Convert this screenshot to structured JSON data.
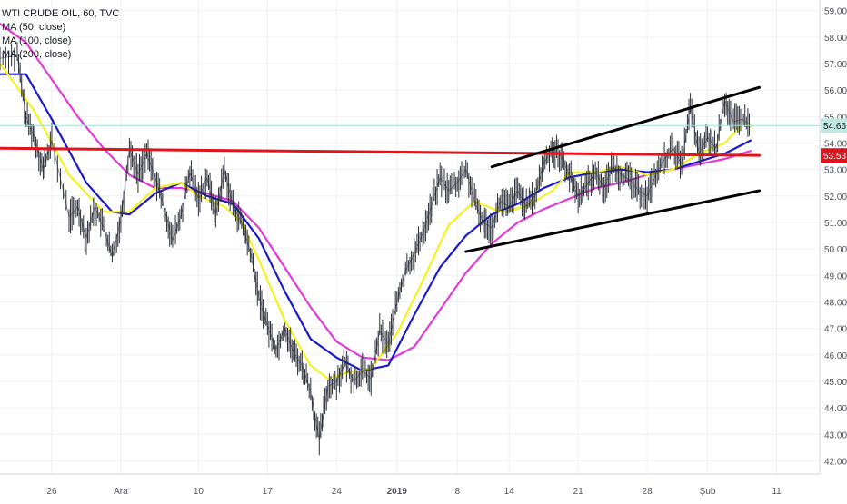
{
  "chart_data": {
    "type": "line",
    "title": "WTI CRUDE OIL, 60, TVC",
    "indicators": [
      {
        "label": "MA (50, close)",
        "color": "#f5f21f"
      },
      {
        "label": "MA (100, close)",
        "color": "#1a1acc"
      },
      {
        "label": "MA (200, close)",
        "color": "#e23ad8"
      }
    ],
    "x_tick_labels": [
      "26",
      "Ara",
      "10",
      "17",
      "24",
      "2019",
      "8",
      "14",
      "21",
      "28",
      "Şub",
      "11"
    ],
    "y_tick_labels": [
      "42.00",
      "43.00",
      "44.00",
      "45.00",
      "46.00",
      "47.00",
      "48.00",
      "49.00",
      "50.00",
      "51.00",
      "52.00",
      "53.00",
      "54.00",
      "55.00",
      "56.00",
      "57.00",
      "58.00",
      "59.00"
    ],
    "ylim": [
      41.5,
      59.4
    ],
    "last_price_label": "54.66",
    "resistance_label": "53.53",
    "y_scale_position": "right",
    "grid": true,
    "colors": {
      "price": "#2a2e39",
      "ma50": "#f5f21f",
      "ma100": "#1a1acc",
      "ma200": "#e23ad8",
      "resistance_line": "#e0141b",
      "channel_lines": "#000000",
      "last_price_badge": "#bfe8e2",
      "last_price_line": "#9fded6",
      "resistance_badge": "#e0141b",
      "grid": "#eef0f3"
    },
    "price_path": [
      [
        0,
        57.2
      ],
      [
        2,
        57.3
      ],
      [
        3,
        55.0
      ],
      [
        4,
        54.2
      ],
      [
        5,
        53.0
      ],
      [
        6,
        54.1
      ],
      [
        8,
        51.2
      ],
      [
        9,
        51.6
      ],
      [
        10,
        50.4
      ],
      [
        11,
        51.6
      ],
      [
        12,
        50.8
      ],
      [
        13,
        49.7
      ],
      [
        14,
        51.1
      ],
      [
        15,
        53.8
      ],
      [
        16,
        52.8
      ],
      [
        17,
        53.6
      ],
      [
        18,
        52.7
      ],
      [
        19,
        51.6
      ],
      [
        20,
        50.3
      ],
      [
        21,
        51.3
      ],
      [
        22,
        52.9
      ],
      [
        23,
        51.9
      ],
      [
        24,
        52.7
      ],
      [
        25,
        51.3
      ],
      [
        26,
        53.0
      ],
      [
        27,
        51.6
      ],
      [
        28,
        51.0
      ],
      [
        29,
        49.9
      ],
      [
        30,
        48.2
      ],
      [
        31,
        47.1
      ],
      [
        32,
        46.2
      ],
      [
        33,
        47.0
      ],
      [
        34,
        46.1
      ],
      [
        35,
        45.6
      ],
      [
        36,
        44.6
      ],
      [
        37,
        42.8
      ],
      [
        38,
        44.8
      ],
      [
        39,
        45.0
      ],
      [
        40,
        45.7
      ],
      [
        41,
        45.0
      ],
      [
        42,
        45.4
      ],
      [
        43,
        45.1
      ],
      [
        44,
        46.9
      ],
      [
        45,
        46.4
      ],
      [
        46,
        48.0
      ],
      [
        47,
        49.2
      ],
      [
        48,
        49.8
      ],
      [
        49,
        50.6
      ],
      [
        50,
        51.6
      ],
      [
        51,
        52.7
      ],
      [
        52,
        52.2
      ],
      [
        53,
        52.5
      ],
      [
        54,
        53.0
      ],
      [
        55,
        51.8
      ],
      [
        56,
        51.0
      ],
      [
        57,
        50.8
      ],
      [
        58,
        51.8
      ],
      [
        59,
        51.6
      ],
      [
        60,
        52.2
      ],
      [
        61,
        51.6
      ],
      [
        62,
        52.0
      ],
      [
        63,
        53.2
      ],
      [
        64,
        53.8
      ],
      [
        65,
        53.5
      ],
      [
        66,
        52.8
      ],
      [
        67,
        52.0
      ],
      [
        68,
        52.4
      ],
      [
        69,
        52.9
      ],
      [
        70,
        52.3
      ],
      [
        71,
        53.1
      ],
      [
        72,
        52.8
      ],
      [
        73,
        52.6
      ],
      [
        74,
        52.2
      ],
      [
        75,
        52.0
      ],
      [
        76,
        52.8
      ],
      [
        77,
        53.4
      ],
      [
        78,
        53.8
      ],
      [
        79,
        53.2
      ],
      [
        80,
        55.4
      ],
      [
        81,
        53.6
      ],
      [
        82,
        54.2
      ],
      [
        83,
        53.8
      ],
      [
        84,
        55.6
      ],
      [
        85,
        54.8
      ],
      [
        86,
        54.9
      ],
      [
        87,
        54.66
      ]
    ],
    "ma50_path": [
      [
        0,
        57.0
      ],
      [
        4,
        55.2
      ],
      [
        8,
        52.8
      ],
      [
        12,
        51.4
      ],
      [
        15,
        51.4
      ],
      [
        18,
        52.3
      ],
      [
        21,
        52.5
      ],
      [
        23,
        52.0
      ],
      [
        26,
        51.6
      ],
      [
        28,
        51.0
      ],
      [
        30,
        49.6
      ],
      [
        33,
        47.3
      ],
      [
        36,
        45.6
      ],
      [
        38,
        45.1
      ],
      [
        40,
        45.3
      ],
      [
        43,
        45.5
      ],
      [
        46,
        46.8
      ],
      [
        49,
        48.8
      ],
      [
        52,
        50.9
      ],
      [
        55,
        51.8
      ],
      [
        58,
        51.4
      ],
      [
        61,
        51.6
      ],
      [
        64,
        52.2
      ],
      [
        66,
        52.9
      ],
      [
        69,
        52.9
      ],
      [
        72,
        53.1
      ],
      [
        75,
        52.8
      ],
      [
        78,
        53.0
      ],
      [
        81,
        53.6
      ],
      [
        84,
        54.0
      ],
      [
        86,
        54.7
      ],
      [
        87,
        54.6
      ]
    ],
    "ma100_path": [
      [
        0,
        56.6
      ],
      [
        3,
        56.6
      ],
      [
        6,
        54.9
      ],
      [
        10,
        52.5
      ],
      [
        13,
        51.4
      ],
      [
        15,
        51.3
      ],
      [
        18,
        52.1
      ],
      [
        21,
        52.5
      ],
      [
        24,
        52.0
      ],
      [
        27,
        51.7
      ],
      [
        30,
        50.4
      ],
      [
        33,
        48.4
      ],
      [
        36,
        46.6
      ],
      [
        39,
        45.9
      ],
      [
        42,
        45.4
      ],
      [
        45,
        45.6
      ],
      [
        48,
        47.5
      ],
      [
        51,
        49.3
      ],
      [
        54,
        50.5
      ],
      [
        57,
        51.3
      ],
      [
        60,
        51.7
      ],
      [
        63,
        52.3
      ],
      [
        66,
        52.7
      ],
      [
        69,
        52.9
      ],
      [
        72,
        53.0
      ],
      [
        75,
        52.9
      ],
      [
        78,
        53.0
      ],
      [
        81,
        53.3
      ],
      [
        84,
        53.6
      ],
      [
        87,
        54.1
      ]
    ],
    "ma200_path": [
      [
        0,
        58.5
      ],
      [
        3,
        57.8
      ],
      [
        6,
        56.4
      ],
      [
        9,
        55.0
      ],
      [
        12,
        53.8
      ],
      [
        15,
        52.8
      ],
      [
        18,
        52.3
      ],
      [
        21,
        52.3
      ],
      [
        24,
        52.1
      ],
      [
        27,
        51.8
      ],
      [
        30,
        50.8
      ],
      [
        33,
        49.3
      ],
      [
        36,
        47.8
      ],
      [
        39,
        46.5
      ],
      [
        42,
        45.9
      ],
      [
        45,
        45.8
      ],
      [
        48,
        46.3
      ],
      [
        51,
        47.7
      ],
      [
        54,
        49.1
      ],
      [
        57,
        50.2
      ],
      [
        60,
        51.0
      ],
      [
        63,
        51.5
      ],
      [
        66,
        51.9
      ],
      [
        69,
        52.3
      ],
      [
        72,
        52.5
      ],
      [
        75,
        52.8
      ],
      [
        78,
        53.0
      ],
      [
        81,
        53.2
      ],
      [
        84,
        53.4
      ],
      [
        87,
        53.7
      ]
    ],
    "resistance_line": [
      [
        0,
        53.8
      ],
      [
        88,
        53.53
      ]
    ],
    "channel_upper": [
      [
        57,
        53.1
      ],
      [
        88,
        56.1
      ]
    ],
    "channel_lower": [
      [
        54,
        49.9
      ],
      [
        88,
        52.2
      ]
    ],
    "x_ticks": [
      [
        6,
        "26"
      ],
      [
        14,
        "Ara"
      ],
      [
        23,
        "10"
      ],
      [
        31,
        "17"
      ],
      [
        39,
        "24"
      ],
      [
        46,
        "2019"
      ],
      [
        53,
        "8"
      ],
      [
        59,
        "14"
      ],
      [
        67,
        "21"
      ],
      [
        75,
        "28"
      ],
      [
        82,
        "Şub"
      ],
      [
        90,
        "11"
      ]
    ],
    "x_range": [
      0,
      95
    ]
  }
}
